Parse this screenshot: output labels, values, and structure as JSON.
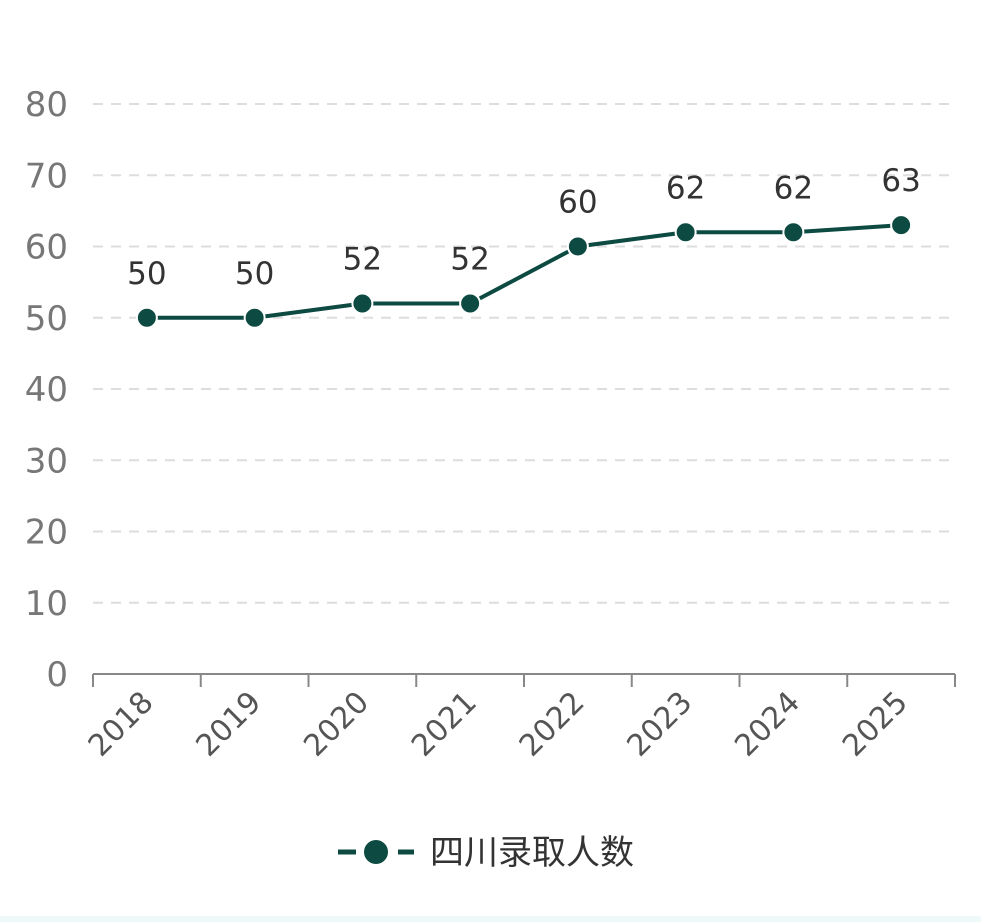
{
  "chart_data": {
    "type": "line",
    "categories": [
      "2018",
      "2019",
      "2020",
      "2021",
      "2022",
      "2023",
      "2024",
      "2025"
    ],
    "series": [
      {
        "name": "四川录取人数",
        "values": [
          50,
          50,
          52,
          52,
          60,
          62,
          62,
          63
        ]
      }
    ],
    "ylim": [
      0,
      80
    ],
    "yticks": [
      0,
      10,
      20,
      30,
      40,
      50,
      60,
      70,
      80
    ],
    "grid": true,
    "legend_position": "bottom-center",
    "data_labels": true,
    "colors": {
      "series": "#0d4a42",
      "grid": "#dddddd",
      "axis": "#888888",
      "tick_text": "#777777",
      "label_text": "#333333"
    }
  }
}
